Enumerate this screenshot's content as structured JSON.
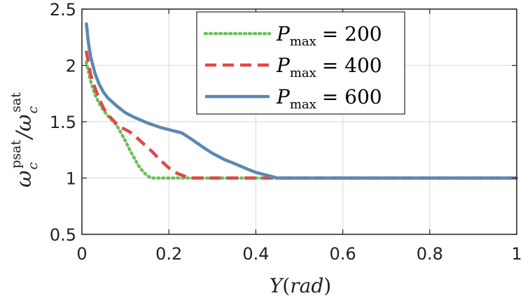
{
  "chart_data": {
    "type": "line",
    "xlabel": "Y(rad)",
    "ylabel": "ω_c^psat / ω_c^sat",
    "xlim": [
      0,
      1
    ],
    "ylim": [
      0.5,
      2.5
    ],
    "xticks": [
      "0",
      "0.2",
      "0.4",
      "0.6",
      "0.8",
      "1"
    ],
    "yticks": [
      "0.5",
      "1",
      "1.5",
      "2",
      "2.5"
    ],
    "grid": true,
    "legend_position": "top-center",
    "series": [
      {
        "name": "P_max = 200",
        "label_var": "P",
        "label_sub": "max",
        "label_value": "= 200",
        "color": "#6cbf5a",
        "style": "dotted",
        "x": [
          0.01,
          0.02,
          0.03,
          0.04,
          0.05,
          0.06,
          0.07,
          0.08,
          0.09,
          0.1,
          0.11,
          0.12,
          0.13,
          0.14,
          0.15,
          0.16,
          0.2,
          0.3,
          0.45,
          0.6,
          0.8,
          1.0
        ],
        "y": [
          2.03,
          1.86,
          1.74,
          1.66,
          1.6,
          1.55,
          1.51,
          1.47,
          1.4,
          1.33,
          1.25,
          1.18,
          1.11,
          1.06,
          1.02,
          1.0,
          1.0,
          1.0,
          1.0,
          1.0,
          1.0,
          1.0
        ]
      },
      {
        "name": "P_max = 400",
        "label_var": "P",
        "label_sub": "max",
        "label_value": "= 400",
        "color": "#e04848",
        "style": "dashed",
        "x": [
          0.01,
          0.02,
          0.03,
          0.04,
          0.05,
          0.06,
          0.07,
          0.08,
          0.09,
          0.1,
          0.11,
          0.12,
          0.14,
          0.16,
          0.18,
          0.2,
          0.22,
          0.24,
          0.25,
          0.3,
          0.45,
          0.6,
          0.8,
          1.0
        ],
        "y": [
          2.13,
          1.92,
          1.8,
          1.7,
          1.62,
          1.56,
          1.52,
          1.48,
          1.45,
          1.43,
          1.41,
          1.38,
          1.31,
          1.24,
          1.16,
          1.09,
          1.04,
          1.01,
          1.0,
          1.0,
          1.0,
          1.0,
          1.0,
          1.0
        ]
      },
      {
        "name": "P_max = 600",
        "label_var": "P",
        "label_sub": "max",
        "label_value": "= 600",
        "color": "#5b88b3",
        "style": "solid",
        "x": [
          0.01,
          0.015,
          0.02,
          0.03,
          0.04,
          0.05,
          0.06,
          0.08,
          0.1,
          0.12,
          0.15,
          0.18,
          0.2,
          0.22,
          0.23,
          0.25,
          0.28,
          0.3,
          0.33,
          0.35,
          0.38,
          0.4,
          0.42,
          0.44,
          0.45,
          0.5,
          0.6,
          0.8,
          1.0
        ],
        "y": [
          2.38,
          2.2,
          2.08,
          1.93,
          1.83,
          1.76,
          1.71,
          1.64,
          1.58,
          1.54,
          1.49,
          1.45,
          1.43,
          1.41,
          1.4,
          1.35,
          1.27,
          1.22,
          1.16,
          1.13,
          1.08,
          1.05,
          1.03,
          1.01,
          1.0,
          1.0,
          1.0,
          1.0,
          1.0
        ]
      }
    ]
  }
}
